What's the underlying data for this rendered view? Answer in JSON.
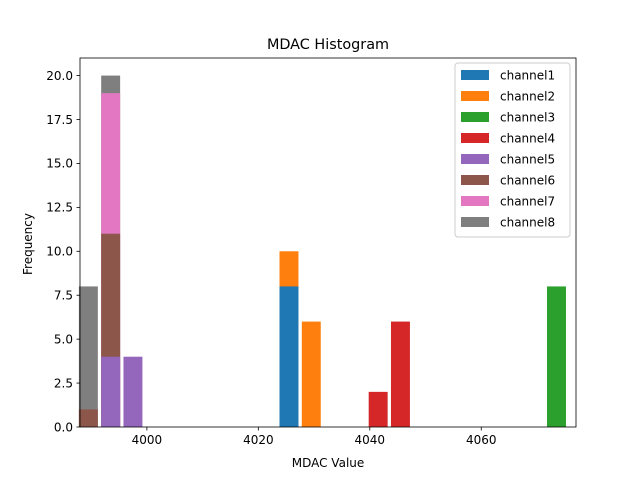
{
  "chart_data": {
    "type": "bar",
    "title": "MDAC Histogram",
    "xlabel": "MDAC Value",
    "ylabel": "Frequency",
    "xlim": [
      3988,
      4077
    ],
    "ylim": [
      0,
      21
    ],
    "x_ticks": [
      4000,
      4020,
      4040,
      4060
    ],
    "y_ticks": [
      0.0,
      2.5,
      5.0,
      7.5,
      10.0,
      12.5,
      15.0,
      17.5,
      20.0
    ],
    "grid": false,
    "legend_position": "top-right",
    "bar_width": 3.4,
    "series": [
      {
        "name": "channel1",
        "color": "#1f77b4",
        "bars": [
          {
            "x": 4025.5,
            "value": 8
          }
        ]
      },
      {
        "name": "channel2",
        "color": "#ff7f0e",
        "bars": [
          {
            "x": 4025.5,
            "value": 10
          },
          {
            "x": 4029.5,
            "value": 6
          }
        ]
      },
      {
        "name": "channel3",
        "color": "#2ca02c",
        "bars": [
          {
            "x": 4073.5,
            "value": 8
          }
        ]
      },
      {
        "name": "channel4",
        "color": "#d62728",
        "bars": [
          {
            "x": 4041.5,
            "value": 2
          },
          {
            "x": 4045.5,
            "value": 6
          }
        ]
      },
      {
        "name": "channel5",
        "color": "#9467bd",
        "bars": [
          {
            "x": 3993.5,
            "value": 4
          },
          {
            "x": 3997.5,
            "value": 4
          }
        ]
      },
      {
        "name": "channel6",
        "color": "#8c564b",
        "bars": [
          {
            "x": 3989.5,
            "value": 1
          },
          {
            "x": 3993.5,
            "value": 11
          }
        ]
      },
      {
        "name": "channel7",
        "color": "#e377c2",
        "bars": [
          {
            "x": 3993.5,
            "value": 19
          }
        ]
      },
      {
        "name": "channel8",
        "color": "#7f7f7f",
        "bars": [
          {
            "x": 3989.5,
            "value": 8
          },
          {
            "x": 3993.5,
            "value": 20
          }
        ]
      }
    ]
  }
}
